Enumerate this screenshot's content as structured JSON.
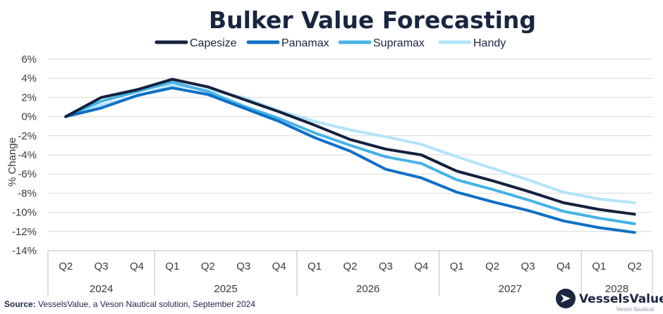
{
  "chart_data": {
    "type": "line",
    "title": "Bulker Value Forecasting",
    "ylabel": "% Change",
    "ylim": [
      -14,
      6
    ],
    "yticks": [
      6,
      4,
      2,
      0,
      -2,
      -4,
      -6,
      -8,
      -10,
      -12,
      -14
    ],
    "ytick_labels": [
      "6%",
      "4%",
      "2%",
      "0%",
      "-2%",
      "-4%",
      "-6%",
      "-8%",
      "-10%",
      "-12%",
      "-14%"
    ],
    "categories": [
      "Q2",
      "Q3",
      "Q4",
      "Q1",
      "Q2",
      "Q3",
      "Q4",
      "Q1",
      "Q2",
      "Q3",
      "Q4",
      "Q1",
      "Q2",
      "Q3",
      "Q4",
      "Q1",
      "Q2"
    ],
    "years": [
      {
        "label": "2024",
        "start": 0,
        "end": 2
      },
      {
        "label": "2025",
        "start": 3,
        "end": 6
      },
      {
        "label": "2026",
        "start": 7,
        "end": 10
      },
      {
        "label": "2027",
        "start": 11,
        "end": 14
      },
      {
        "label": "2028",
        "start": 15,
        "end": 16
      }
    ],
    "grid": true,
    "legend_position": "top-center",
    "series": [
      {
        "name": "Capesize",
        "color": "#14213d",
        "values": [
          0,
          2.0,
          2.8,
          3.9,
          3.1,
          1.8,
          0.5,
          -0.9,
          -2.4,
          -3.4,
          -4.0,
          -5.7,
          -6.7,
          -7.8,
          -9.0,
          -9.7,
          -10.2
        ]
      },
      {
        "name": "Panamax",
        "color": "#0f6fc6",
        "values": [
          0,
          0.9,
          2.2,
          3.0,
          2.3,
          0.9,
          -0.5,
          -2.2,
          -3.6,
          -5.5,
          -6.4,
          -7.9,
          -8.9,
          -9.8,
          -10.9,
          -11.6,
          -12.1
        ]
      },
      {
        "name": "Supramax",
        "color": "#45b3e7",
        "values": [
          0,
          1.6,
          2.6,
          3.6,
          2.6,
          1.1,
          -0.2,
          -1.7,
          -3.0,
          -4.2,
          -4.9,
          -6.6,
          -7.6,
          -8.7,
          -9.9,
          -10.6,
          -11.2
        ]
      },
      {
        "name": "Handy",
        "color": "#b3e4f8",
        "values": [
          0,
          1.2,
          2.1,
          3.3,
          2.8,
          2.0,
          0.6,
          -0.5,
          -1.4,
          -2.1,
          -2.9,
          -4.2,
          -5.4,
          -6.6,
          -7.9,
          -8.6,
          -9.0
        ]
      }
    ]
  },
  "source": {
    "label": "Source:",
    "text": " VesselsValue, a Veson Nautical solution, September 2024"
  },
  "brand": {
    "name": "VesselsValue",
    "sub": "Veson Nautical",
    "icon": "vesselsvalue-logo-icon"
  }
}
